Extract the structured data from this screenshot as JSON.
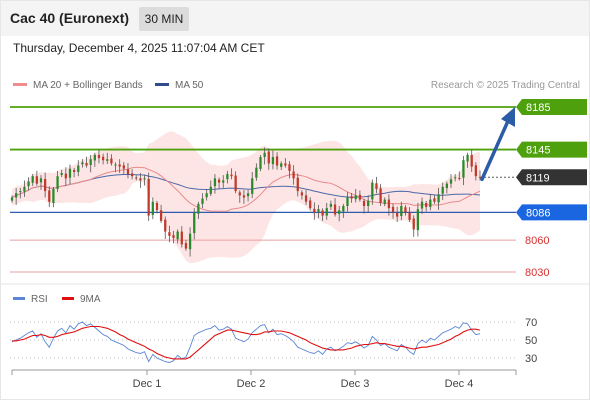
{
  "header": {
    "instrument": "Cac 40 (Euronext)",
    "timeframe": "30 MIN",
    "datetime": "Thursday, December 4, 2025 11:07:04 AM CET"
  },
  "legend": {
    "ma20_label": "MA 20 + Bollinger Bands",
    "ma50_label": "MA 50",
    "credit": "Research © 2025 Trading Central"
  },
  "rsi_legend": {
    "rsi_label": "RSI",
    "ma_label": "9MA"
  },
  "colors": {
    "resistance": "#4ea10c",
    "support": "#2c5bb0",
    "support_label": "#1a66e0",
    "minor": "#e06666",
    "current": "#333333",
    "ma20": "#e88a8a",
    "ma50": "#4a68a8",
    "band": "#fde0e0",
    "arrow": "#2c5ba8",
    "bull": "#2a8a2a",
    "bear": "#c0392b"
  },
  "chart_data": [
    {
      "type": "candlestick",
      "title": "Cac 40 (Euronext)",
      "timeframe": "30 MIN",
      "xlabels": [
        "Dec 1",
        "Dec 2",
        "Dec 3",
        "Dec 4"
      ],
      "ylim": [
        8020,
        8195
      ],
      "levels": [
        {
          "value": 8185,
          "label": "8185",
          "kind": "resistance"
        },
        {
          "value": 8145,
          "label": "8145",
          "kind": "resistance"
        },
        {
          "value": 8119,
          "label": "8119",
          "kind": "current"
        },
        {
          "value": 8086,
          "label": "8086",
          "kind": "support"
        },
        {
          "value": 8060,
          "label": "8060",
          "kind": "minor"
        },
        {
          "value": 8030,
          "label": "8030",
          "kind": "minor"
        }
      ],
      "close": [
        8100,
        8104,
        8106,
        8110,
        8115,
        8120,
        8113,
        8118,
        8106,
        8096,
        8108,
        8120,
        8123,
        8118,
        8127,
        8124,
        8130,
        8133,
        8130,
        8136,
        8140,
        8137,
        8135,
        8136,
        8132,
        8131,
        8129,
        8127,
        8122,
        8120,
        8118,
        8116,
        8118,
        8083,
        8096,
        8088,
        8078,
        8068,
        8064,
        8062,
        8068,
        8056,
        8052,
        8066,
        8086,
        8094,
        8099,
        8104,
        8110,
        8118,
        8114,
        8116,
        8122,
        8120,
        8106,
        8102,
        8100,
        8104,
        8118,
        8128,
        8138,
        8142,
        8132,
        8138,
        8130,
        8132,
        8130,
        8125,
        8118,
        8106,
        8102,
        8096,
        8090,
        8086,
        8089,
        8083,
        8090,
        8094,
        8084,
        8088,
        8092,
        8100,
        8099,
        8102,
        8098,
        8092,
        8097,
        8114,
        8108,
        8095,
        8098,
        8090,
        8086,
        8082,
        8092,
        8086,
        8079,
        8070,
        8089,
        8096,
        8091,
        8098,
        8096,
        8103,
        8110,
        8113,
        8117,
        8119,
        8118,
        8135,
        8140,
        8129,
        8120,
        8119
      ],
      "indicators": [
        "MA 20 + Bollinger Bands",
        "MA 50"
      ]
    },
    {
      "type": "line",
      "title": "RSI",
      "series": [
        {
          "name": "RSI",
          "values": [
            48,
            50,
            52,
            55,
            58,
            60,
            53,
            57,
            48,
            42,
            52,
            60,
            63,
            58,
            66,
            62,
            68,
            70,
            66,
            68,
            64,
            60,
            56,
            54,
            50,
            48,
            46,
            44,
            40,
            38,
            36,
            35,
            37,
            26,
            34,
            30,
            28,
            26,
            25,
            27,
            33,
            29,
            31,
            42,
            55,
            58,
            60,
            62,
            63,
            66,
            61,
            62,
            65,
            62,
            52,
            50,
            48,
            51,
            58,
            62,
            66,
            67,
            58,
            62,
            56,
            57,
            55,
            52,
            48,
            42,
            40,
            38,
            36,
            35,
            38,
            34,
            40,
            42,
            38,
            40,
            43,
            47,
            46,
            48,
            45,
            41,
            44,
            54,
            50,
            44,
            46,
            42,
            40,
            38,
            45,
            42,
            37,
            34,
            46,
            50,
            47,
            52,
            50,
            54,
            58,
            60,
            62,
            65,
            63,
            69,
            68,
            61,
            56,
            57
          ]
        },
        {
          "name": "9MA",
          "values": [
            49,
            49,
            50,
            51,
            53,
            55,
            55,
            56,
            55,
            53,
            53,
            54,
            56,
            57,
            58,
            59,
            61,
            63,
            64,
            65,
            65,
            65,
            64,
            63,
            61,
            59,
            56,
            54,
            51,
            49,
            47,
            45,
            43,
            40,
            38,
            35,
            33,
            31,
            30,
            29,
            29,
            29,
            29,
            31,
            35,
            39,
            43,
            47,
            51,
            55,
            57,
            59,
            61,
            61,
            60,
            59,
            58,
            57,
            56,
            56,
            57,
            59,
            59,
            60,
            60,
            60,
            59,
            58,
            56,
            54,
            52,
            50,
            47,
            45,
            43,
            41,
            40,
            39,
            39,
            39,
            39,
            40,
            41,
            43,
            44,
            45,
            45,
            46,
            47,
            46,
            46,
            45,
            44,
            43,
            43,
            42,
            41,
            40,
            41,
            42,
            42,
            43,
            44,
            45,
            47,
            49,
            51,
            54,
            56,
            59,
            61,
            62,
            62,
            61
          ]
        }
      ],
      "yticks": [
        70,
        50,
        30
      ],
      "ylim": [
        20,
        80
      ]
    }
  ]
}
